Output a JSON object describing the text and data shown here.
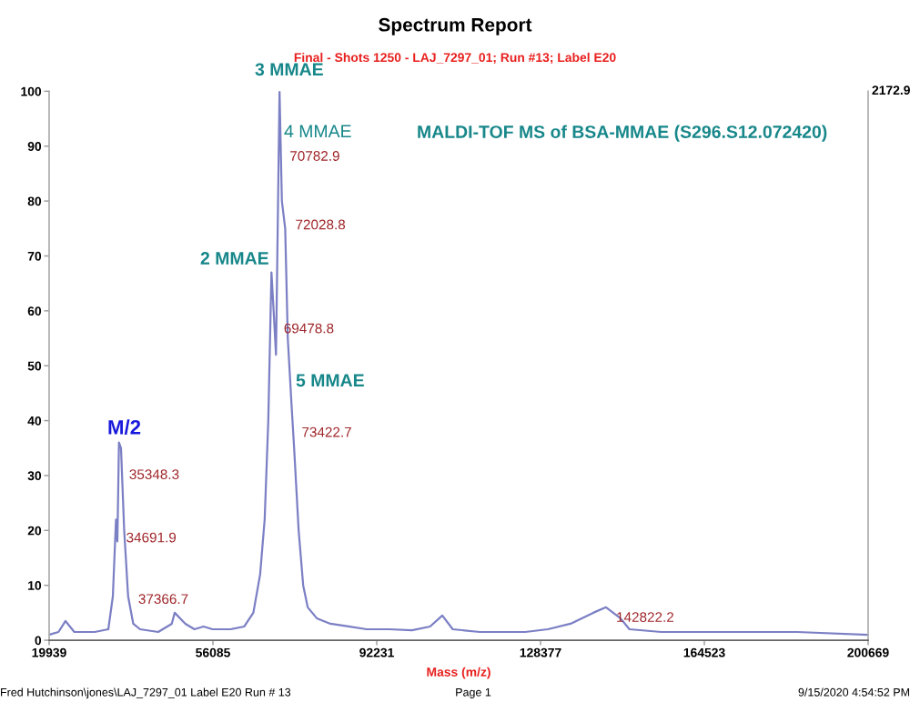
{
  "chart_data": {
    "type": "line",
    "title": "Spectrum Report",
    "subtitle": "Final - Shots 1250 - LAJ_7297_01; Run #13; Label E20",
    "xlabel": "Mass (m/z)",
    "x": [
      19939,
      22000,
      23550,
      25500,
      30000,
      33000,
      34000,
      34691.9,
      35000,
      35348.3,
      35800,
      36500,
      37366.7,
      38500,
      40000,
      44000,
      47000,
      47650,
      50000,
      52000,
      54000,
      56000,
      60000,
      63000,
      65000,
      66500,
      67500,
      68300,
      69000,
      69478.8,
      70000,
      70782.9,
      71300,
      72028.8,
      72600,
      73422.7,
      74000,
      75000,
      76000,
      77000,
      79000,
      82000,
      86000,
      90000,
      95000,
      100000,
      104000,
      106700,
      109000,
      115000,
      125000,
      130000,
      135000,
      140000,
      142822.2,
      146000,
      148000,
      155000,
      170000,
      185000,
      200669
    ],
    "series": [
      {
        "color": "#7b7fc4",
        "values": [
          1,
          1.5,
          3.5,
          1.5,
          1.5,
          2,
          8,
          22,
          18,
          36,
          35,
          20,
          8,
          3,
          2,
          1.5,
          3,
          5,
          3,
          2,
          2.5,
          2,
          2,
          2.5,
          5,
          12,
          22,
          40,
          67,
          60,
          52,
          100,
          80,
          75,
          55,
          43,
          35,
          20,
          10,
          6,
          4,
          3,
          2.5,
          2,
          2,
          1.8,
          2.5,
          4.5,
          2,
          1.5,
          1.5,
          2,
          3,
          5,
          6,
          4,
          2,
          1.5,
          1.5,
          1.5,
          1
        ]
      }
    ],
    "xlim": [
      19939,
      200669
    ],
    "xticks": [
      19939,
      56085,
      92231,
      128377,
      164523,
      200669
    ],
    "ylim": [
      0,
      100
    ],
    "yticks": [
      0,
      10,
      20,
      30,
      40,
      50,
      60,
      70,
      80,
      90,
      100
    ],
    "grid": false,
    "marker": "none",
    "line_style": "solid",
    "annotations": [
      {
        "text": "70782.9",
        "x": 70782.9,
        "y": 88
      },
      {
        "text": "72028.8",
        "x": 72028.8,
        "y": 75.5
      },
      {
        "text": "69478.8",
        "x": 69478.8,
        "y": 56.6
      },
      {
        "text": "73422.7",
        "x": 73422.7,
        "y": 37.7
      },
      {
        "text": "35348.3",
        "x": 35348.3,
        "y": 30
      },
      {
        "text": "34691.9",
        "x": 34691.9,
        "y": 18.5
      },
      {
        "text": "37366.7",
        "x": 37366.7,
        "y": 7.3
      },
      {
        "text": "142822.2",
        "x": 142822.2,
        "y": 4
      },
      "3 MMAE",
      "4 MMAE",
      "2 MMAE",
      "5 MMAE",
      "M/2",
      "MALDI-TOF MS of BSA-MMAE (S296.S12.072420)",
      "2172.9",
      "Fred Hutchinson\\jones\\LAJ_7297_01 Label E20 Run # 13",
      "Page 1",
      "9/15/2020 4:54:52 PM"
    ]
  }
}
